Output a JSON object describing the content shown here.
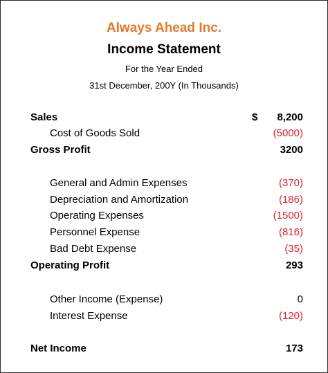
{
  "header": {
    "company": "Always Ahead Inc.",
    "title": "Income Statement",
    "period_line1": "For the Year Ended",
    "period_line2": "31st December, 200Y (In Thousands)"
  },
  "rows": [
    {
      "label": "Sales",
      "currency": "$",
      "amount": "8,200"
    },
    {
      "label": "Cost of Goods Sold",
      "amount": "(5000)"
    },
    {
      "label": "Gross Profit",
      "amount": "3200"
    },
    {
      "label": "General and Admin Expenses",
      "amount": "(370)"
    },
    {
      "label": "Depreciation and Amortization",
      "amount": "(186)"
    },
    {
      "label": "Operating Expenses",
      "amount": "(1500)"
    },
    {
      "label": "Personnel Expense",
      "amount": "(816)"
    },
    {
      "label": "Bad Debt Expense",
      "amount": "(35)"
    },
    {
      "label": "Operating Profit",
      "amount": "293"
    },
    {
      "label": "Other Income (Expense)",
      "amount": "0"
    },
    {
      "label": "Interest Expense",
      "amount": "(120)"
    },
    {
      "label": "Net Income",
      "amount": "173"
    }
  ],
  "colors": {
    "company": "#e8782a",
    "negative": "#e0202a",
    "text": "#000000"
  }
}
